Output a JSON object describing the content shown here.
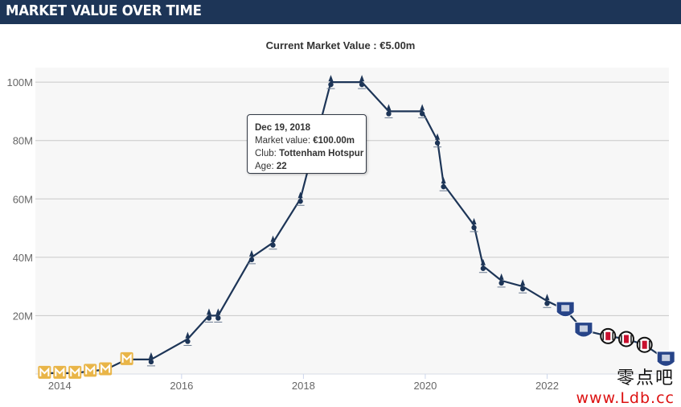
{
  "header": {
    "title": "MARKET VALUE OVER TIME"
  },
  "subtitle": {
    "label": "Current Market Value :",
    "value": "€5.00m"
  },
  "colors": {
    "header_bg": "#1d3557",
    "line": "#1d3557",
    "plot_bg": "#f7f7f7",
    "grid": "#c8c8c8"
  },
  "tooltip": {
    "date": "Dec 19, 2018",
    "market_value_label": "Market value:",
    "market_value": "€100.00m",
    "club_label": "Club:",
    "club": "Tottenham Hotspur",
    "age_label": "Age:",
    "age": "22"
  },
  "watermark": {
    "cn": "零点吧",
    "url": "www.Ldb.cc"
  },
  "chart_data": {
    "type": "line",
    "title": "",
    "xlabel": "",
    "ylabel": "",
    "x_ticks": [
      2014,
      2016,
      2018,
      2020,
      2022
    ],
    "y_ticks": [
      20,
      40,
      60,
      80,
      100
    ],
    "y_tick_labels": [
      "20M",
      "40M",
      "60M",
      "80M",
      "100M"
    ],
    "xlim": [
      2013.6,
      2024.0
    ],
    "ylim": [
      0,
      105
    ],
    "grid": true,
    "series": [
      {
        "values_unit": "€m",
        "points": [
          {
            "x": 2013.75,
            "y": 0.3,
            "club": "MK Dons"
          },
          {
            "x": 2014.0,
            "y": 0.3,
            "club": "MK Dons"
          },
          {
            "x": 2014.25,
            "y": 0.3,
            "club": "MK Dons"
          },
          {
            "x": 2014.5,
            "y": 1.0,
            "club": "MK Dons"
          },
          {
            "x": 2014.75,
            "y": 1.5,
            "club": "MK Dons"
          },
          {
            "x": 2015.1,
            "y": 5.0,
            "club": "MK Dons"
          },
          {
            "x": 2015.5,
            "y": 5.0,
            "club": "Tottenham Hotspur"
          },
          {
            "x": 2016.1,
            "y": 12.0,
            "club": "Tottenham Hotspur"
          },
          {
            "x": 2016.45,
            "y": 20.0,
            "club": "Tottenham Hotspur"
          },
          {
            "x": 2016.6,
            "y": 20.0,
            "club": "Tottenham Hotspur"
          },
          {
            "x": 2017.15,
            "y": 40.0,
            "club": "Tottenham Hotspur"
          },
          {
            "x": 2017.5,
            "y": 45.0,
            "club": "Tottenham Hotspur"
          },
          {
            "x": 2017.95,
            "y": 60.0,
            "club": "Tottenham Hotspur"
          },
          {
            "x": 2018.45,
            "y": 100.0,
            "club": "Tottenham Hotspur"
          },
          {
            "x": 2018.96,
            "y": 100.0,
            "club": "Tottenham Hotspur"
          },
          {
            "x": 2019.4,
            "y": 90.0,
            "club": "Tottenham Hotspur"
          },
          {
            "x": 2019.95,
            "y": 90.0,
            "club": "Tottenham Hotspur"
          },
          {
            "x": 2020.2,
            "y": 80.0,
            "club": "Tottenham Hotspur"
          },
          {
            "x": 2020.3,
            "y": 65.0,
            "club": "Tottenham Hotspur"
          },
          {
            "x": 2020.8,
            "y": 51.0,
            "club": "Tottenham Hotspur"
          },
          {
            "x": 2020.95,
            "y": 37.0,
            "club": "Tottenham Hotspur"
          },
          {
            "x": 2021.25,
            "y": 32.0,
            "club": "Tottenham Hotspur"
          },
          {
            "x": 2021.6,
            "y": 30.0,
            "club": "Tottenham Hotspur"
          },
          {
            "x": 2022.0,
            "y": 25.0,
            "club": "Tottenham Hotspur"
          },
          {
            "x": 2022.3,
            "y": 22.0,
            "club": "Everton"
          },
          {
            "x": 2022.6,
            "y": 15.0,
            "club": "Everton"
          },
          {
            "x": 2023.0,
            "y": 13.0,
            "club": "Besiktas"
          },
          {
            "x": 2023.3,
            "y": 12.0,
            "club": "Besiktas"
          },
          {
            "x": 2023.6,
            "y": 10.0,
            "club": "Besiktas"
          },
          {
            "x": 2023.95,
            "y": 5.0,
            "club": "Everton"
          }
        ]
      }
    ]
  }
}
